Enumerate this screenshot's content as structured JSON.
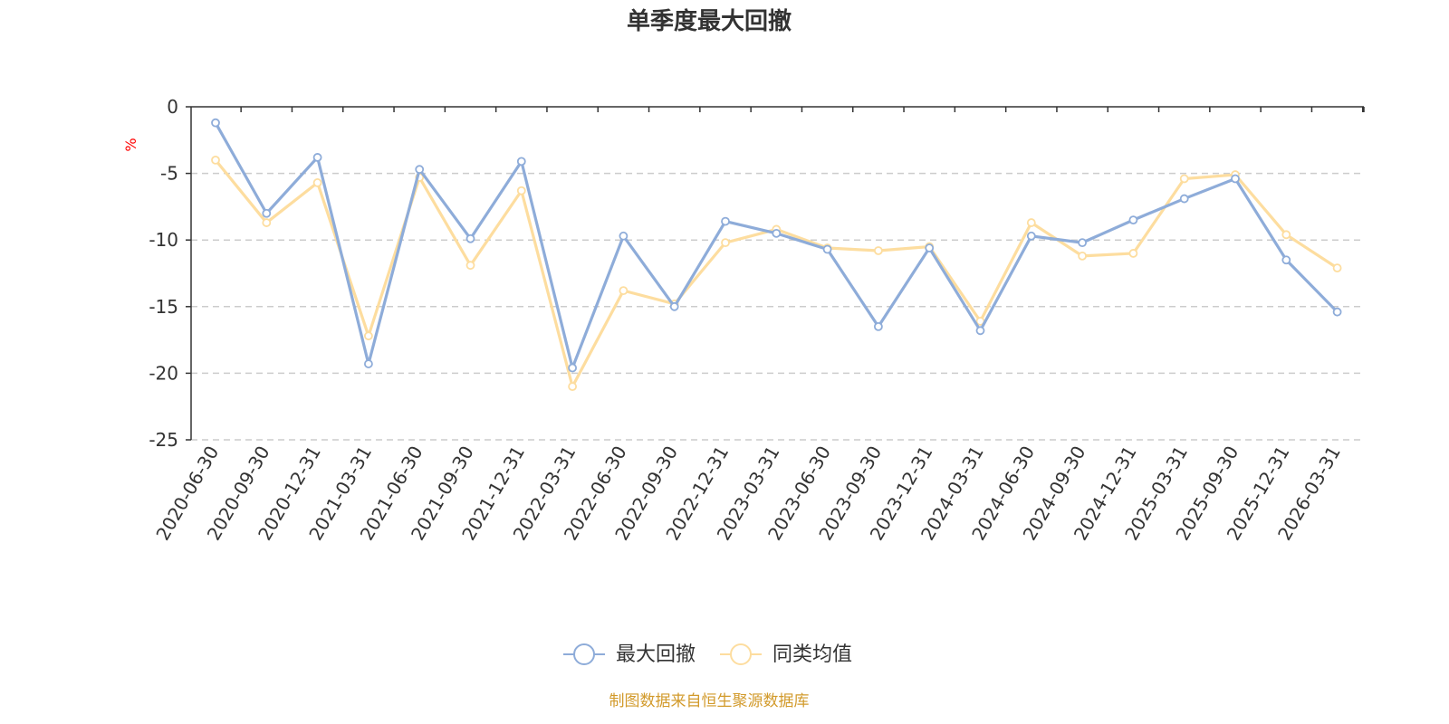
{
  "chart_data": {
    "type": "line",
    "title": "单季度最大回撤",
    "ylabel": "%",
    "ylim": [
      -25,
      0
    ],
    "yticks": [
      0,
      -5,
      -10,
      -15,
      -20,
      -25
    ],
    "grid": true,
    "legend_position": "bottom-center",
    "x": [
      "2020-06-30",
      "2020-09-30",
      "2020-12-31",
      "2021-03-31",
      "2021-06-30",
      "2021-09-30",
      "2021-12-31",
      "2022-03-31",
      "2022-06-30",
      "2022-09-30",
      "2022-12-31",
      "2023-03-31",
      "2023-06-30",
      "2023-09-30",
      "2023-12-31",
      "2024-03-31",
      "2024-06-30",
      "2024-09-30",
      "2024-12-31",
      "2025-03-31",
      "2025-09-30",
      "2025-12-31",
      "2026-03-31"
    ],
    "series": [
      {
        "name": "最大回撤",
        "color": "#8eacd9",
        "values": [
          -1.2,
          -8.0,
          -3.8,
          -19.3,
          -4.7,
          -9.9,
          -4.1,
          -19.6,
          -9.7,
          -15.0,
          -8.6,
          -9.5,
          -10.7,
          -16.5,
          -10.6,
          -16.8,
          -9.7,
          -10.2,
          -8.5,
          -6.9,
          -5.4,
          -11.5,
          -15.4
        ]
      },
      {
        "name": "同类均值",
        "color": "#fddd9f",
        "values": [
          -4.0,
          -8.7,
          -5.7,
          -17.2,
          -5.3,
          -11.9,
          -6.3,
          -21.0,
          -13.8,
          -14.8,
          -10.2,
          -9.2,
          -10.6,
          -10.8,
          -10.5,
          -16.1,
          -8.7,
          -11.2,
          -11.0,
          -5.4,
          -5.1,
          -9.6,
          -12.1
        ]
      }
    ]
  },
  "source_text": "制图数据来自恒生聚源数据库",
  "colors": {
    "grid": "#cccccc",
    "axis": "#333333",
    "source": "#d29a2b",
    "unit": "#ff0000"
  }
}
